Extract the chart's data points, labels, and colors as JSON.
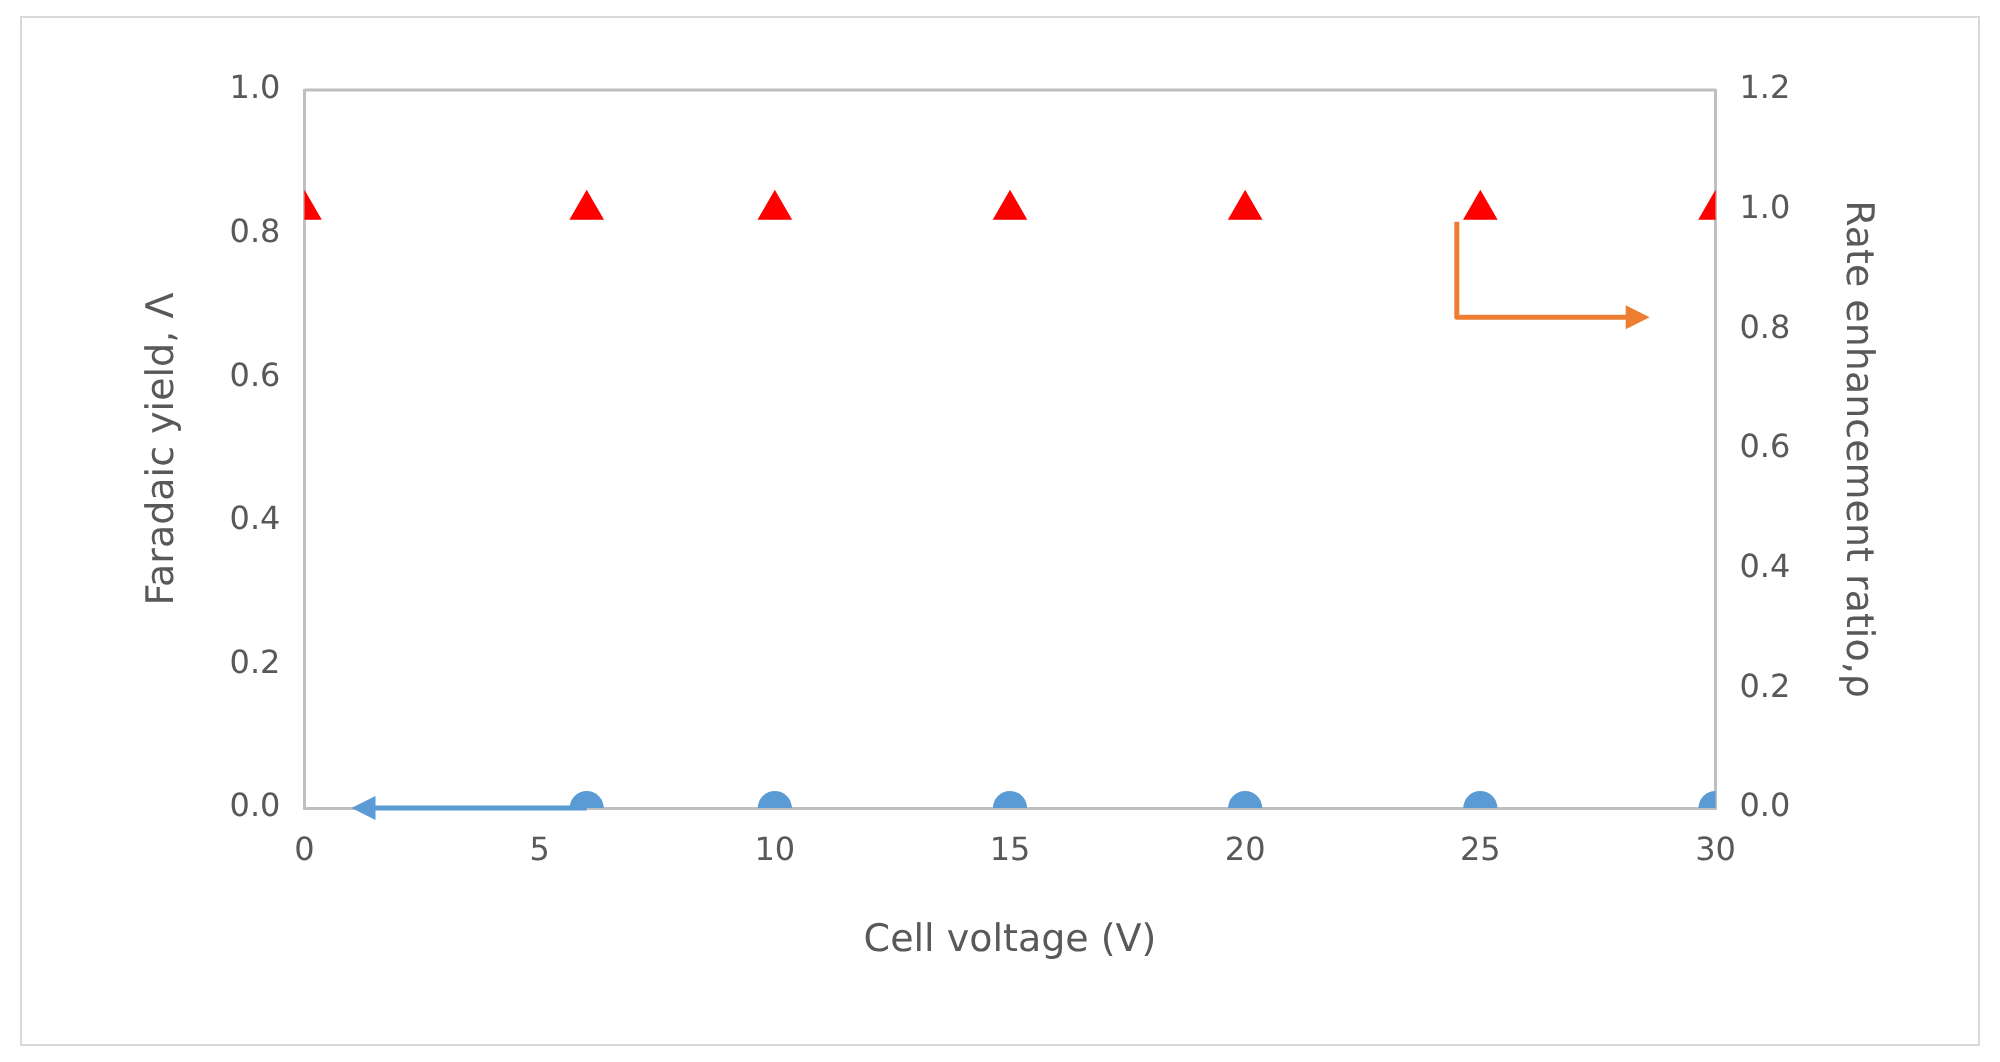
{
  "chart_data": {
    "type": "scatter",
    "xlabel": "Cell voltage (V)",
    "ylabel": "Faradaic yield, Λ",
    "y2label": "Rate enhancement ratio,ρ",
    "series": [
      {
        "type": "scatter",
        "color": "#5b9bd5",
        "marker": "circle",
        "x": [
          6,
          10,
          15,
          20,
          25,
          30
        ],
        "values": [
          0,
          0,
          0,
          0,
          0,
          0
        ]
      },
      {
        "type": "scatter",
        "color": "#ff0000",
        "marker": "triangle",
        "axis": "y2",
        "x": [
          0,
          6,
          10,
          15,
          20,
          25,
          30
        ],
        "values": [
          1,
          1,
          1,
          1,
          1,
          1,
          1
        ]
      }
    ],
    "xlim": [
      0,
      30
    ],
    "xticks": [
      0,
      5,
      10,
      15,
      20,
      25,
      30
    ],
    "ylim": [
      0,
      1
    ],
    "yticks": [
      {
        "value": 0,
        "label": "0.0"
      },
      {
        "value": 0.2,
        "label": "0.2"
      },
      {
        "value": 0.4,
        "label": "0.4"
      },
      {
        "value": 0.6,
        "label": "0.6"
      },
      {
        "value": 0.8,
        "label": "0.8"
      },
      {
        "value": 1,
        "label": "1.0"
      }
    ],
    "y2lim": [
      0,
      1.2
    ],
    "y2ticks": [
      {
        "value": 0,
        "label": "0.0"
      },
      {
        "value": 0.2,
        "label": "0.2"
      },
      {
        "value": 0.4,
        "label": "0.4"
      },
      {
        "value": 0.6,
        "label": "0.6"
      },
      {
        "value": 0.8,
        "label": "0.8"
      },
      {
        "value": 1,
        "label": "1.0"
      },
      {
        "value": 1.2,
        "label": "1.2"
      }
    ],
    "grid": false,
    "legend": false
  }
}
